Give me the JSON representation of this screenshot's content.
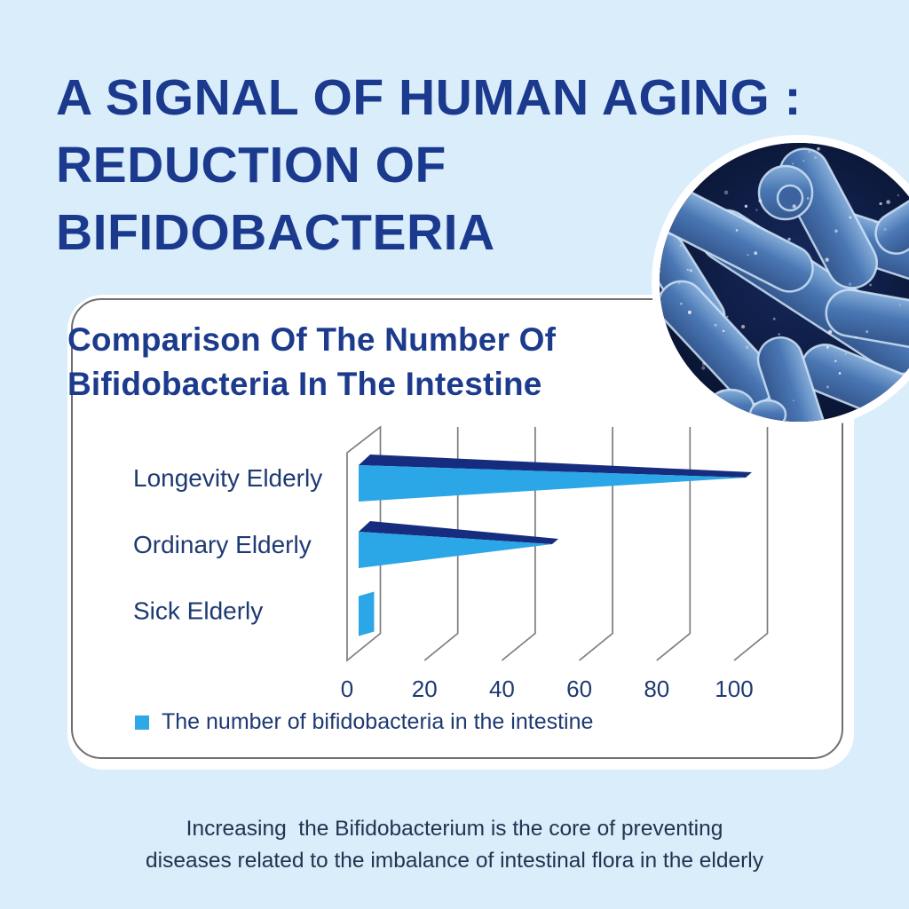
{
  "page": {
    "background_color": "#d9edfb",
    "title_lines": [
      "A SIGNAL OF HUMAN AGING :",
      "REDUCTION OF",
      "BIFIDOBACTERIA"
    ],
    "title_color": "#1b3a8e",
    "footer_lines": [
      "Increasing  the Bifidobacterium is the core of preventing",
      "diseases related to the imbalance of intestinal flora in the elderly"
    ],
    "footer_color": "#233350"
  },
  "card": {
    "title_lines": [
      "Comparison Of The Number Of",
      "Bifidobacteria In The Intestine"
    ],
    "title_color": "#1c3b8c",
    "background_color": "#ffffff",
    "border_color": "#6f6f6f"
  },
  "legend": {
    "swatch_color": "#2ea9e6",
    "label": "The number of bifidobacteria in the intestine"
  },
  "photo": {
    "name": "bifidobacteria-micrograph",
    "ring_color": "#ffffff"
  },
  "chart_data": {
    "type": "bar",
    "orientation": "horizontal",
    "style": "3d-wedge",
    "title": "Comparison Of The Number Of Bifidobacteria In The Intestine",
    "categories": [
      "Longevity Elderly",
      "Ordinary Elderly",
      "Sick Elderly"
    ],
    "values": [
      100,
      50,
      4
    ],
    "series_label": "The number of bifidobacteria in the intestine",
    "x_ticks": [
      0,
      20,
      40,
      60,
      80,
      100
    ],
    "xlim": [
      0,
      110
    ],
    "grid": true,
    "legend_position": "bottom-left",
    "bar_color": "#2ba6e6",
    "bar_top_color": "#162d7f",
    "grid_color": "#7d7d7d",
    "label_color": "#1e3a72"
  }
}
